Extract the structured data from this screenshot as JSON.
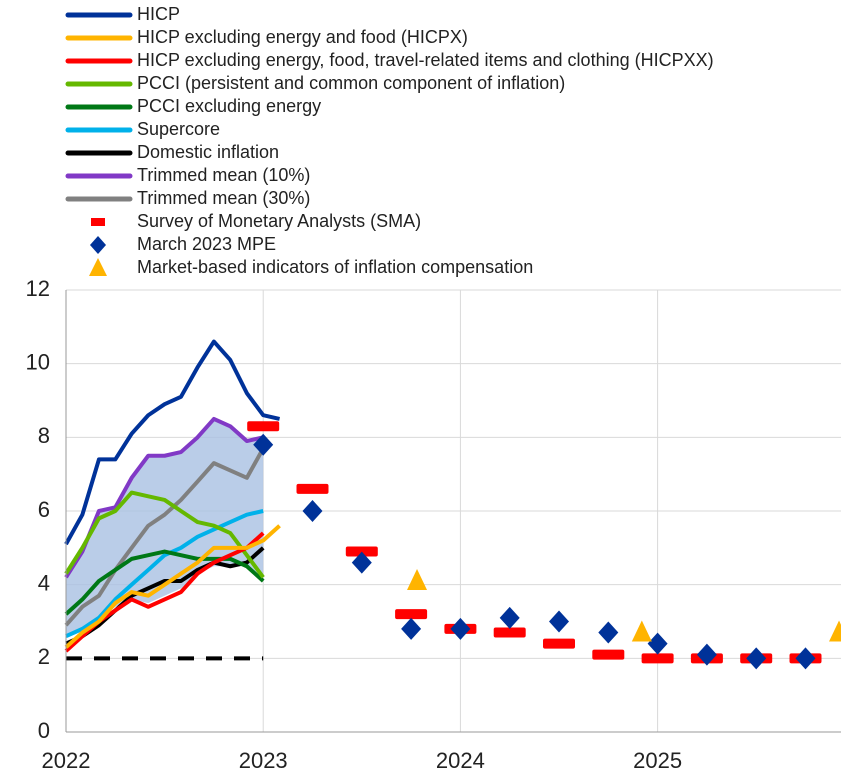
{
  "chart_data": {
    "type": "line",
    "xlim": [
      2022,
      2025.93
    ],
    "xticks": [
      2022,
      2023,
      2024,
      2025
    ],
    "ylim": [
      0,
      12
    ],
    "yticks": [
      0,
      2,
      4,
      6,
      8,
      10,
      12
    ],
    "grid": true,
    "band": {
      "color": "#a9c1e2",
      "x": [
        2022,
        2022.083,
        2022.167,
        2022.25,
        2022.333,
        2022.417,
        2022.5,
        2022.583,
        2022.667,
        2022.75,
        2022.833,
        2022.917,
        2023
      ],
      "lower": [
        2.6,
        2.8,
        3.0,
        3.4,
        3.6,
        3.5,
        3.7,
        3.9,
        4.3,
        4.5,
        4.5,
        4.5,
        4.2
      ],
      "upper": [
        4.2,
        4.9,
        6.0,
        6.1,
        6.9,
        7.5,
        7.5,
        7.6,
        8.0,
        8.5,
        8.3,
        7.9,
        8.0
      ]
    },
    "target_line": {
      "color": "#000000",
      "x": [
        2022,
        2023
      ],
      "values": [
        2,
        2
      ]
    },
    "series": [
      {
        "name": "HICP",
        "color": "#003299",
        "marker": "line",
        "x": [
          2022,
          2022.083,
          2022.167,
          2022.25,
          2022.333,
          2022.417,
          2022.5,
          2022.583,
          2022.667,
          2022.75,
          2022.833,
          2022.917,
          2023,
          2023.083
        ],
        "values": [
          5.1,
          5.9,
          7.4,
          7.4,
          8.1,
          8.6,
          8.9,
          9.1,
          9.9,
          10.6,
          10.1,
          9.2,
          8.6,
          8.5
        ]
      },
      {
        "name": "HICP excluding energy and food (HICPX)",
        "color": "#ffb400",
        "marker": "line",
        "x": [
          2022,
          2022.083,
          2022.167,
          2022.25,
          2022.333,
          2022.417,
          2022.5,
          2022.583,
          2022.667,
          2022.75,
          2022.833,
          2022.917,
          2023,
          2023.083
        ],
        "values": [
          2.3,
          2.7,
          3.0,
          3.5,
          3.8,
          3.7,
          4.0,
          4.3,
          4.6,
          5.0,
          5.0,
          5.0,
          5.2,
          5.6
        ]
      },
      {
        "name": "HICP excluding energy, food, travel-related items and clothing (HICPXX)",
        "color": "#ff0000",
        "marker": "line",
        "x": [
          2022,
          2022.083,
          2022.167,
          2022.25,
          2022.333,
          2022.417,
          2022.5,
          2022.583,
          2022.667,
          2022.75,
          2022.833,
          2022.917,
          2023
        ],
        "values": [
          2.2,
          2.6,
          3.0,
          3.3,
          3.6,
          3.4,
          3.6,
          3.8,
          4.3,
          4.6,
          4.8,
          5.0,
          5.4
        ]
      },
      {
        "name": "PCCI (persistent and common component of inflation)",
        "color": "#65b800",
        "marker": "line",
        "x": [
          2022,
          2022.083,
          2022.167,
          2022.25,
          2022.333,
          2022.417,
          2022.5,
          2022.583,
          2022.667,
          2022.75,
          2022.833,
          2022.917,
          2023
        ],
        "values": [
          4.3,
          5.0,
          5.8,
          6.0,
          6.5,
          6.4,
          6.3,
          6.0,
          5.7,
          5.6,
          5.4,
          4.8,
          4.2
        ]
      },
      {
        "name": "PCCI excluding energy",
        "color": "#007816",
        "marker": "line",
        "x": [
          2022,
          2022.083,
          2022.167,
          2022.25,
          2022.333,
          2022.417,
          2022.5,
          2022.583,
          2022.667,
          2022.75,
          2022.833,
          2022.917,
          2023
        ],
        "values": [
          3.2,
          3.6,
          4.1,
          4.4,
          4.7,
          4.8,
          4.9,
          4.8,
          4.7,
          4.7,
          4.7,
          4.5,
          4.1
        ]
      },
      {
        "name": "Supercore",
        "color": "#00b1ea",
        "marker": "line",
        "x": [
          2022,
          2022.083,
          2022.167,
          2022.25,
          2022.333,
          2022.417,
          2022.5,
          2022.583,
          2022.667,
          2022.75,
          2022.833,
          2022.917,
          2023
        ],
        "values": [
          2.6,
          2.8,
          3.1,
          3.6,
          4.0,
          4.4,
          4.8,
          5.0,
          5.3,
          5.5,
          5.7,
          5.9,
          6.0
        ]
      },
      {
        "name": "Domestic inflation",
        "color": "#000000",
        "marker": "line",
        "x": [
          2022,
          2022.083,
          2022.167,
          2022.25,
          2022.333,
          2022.417,
          2022.5,
          2022.583,
          2022.667,
          2022.75,
          2022.833,
          2022.917,
          2023
        ],
        "values": [
          2.4,
          2.6,
          2.9,
          3.3,
          3.7,
          3.9,
          4.1,
          4.1,
          4.4,
          4.6,
          4.5,
          4.6,
          5.0
        ]
      },
      {
        "name": "Trimmed mean (10%)",
        "color": "#8139c6",
        "marker": "line",
        "x": [
          2022,
          2022.083,
          2022.167,
          2022.25,
          2022.333,
          2022.417,
          2022.5,
          2022.583,
          2022.667,
          2022.75,
          2022.833,
          2022.917,
          2023
        ],
        "values": [
          4.2,
          4.9,
          6.0,
          6.1,
          6.9,
          7.5,
          7.5,
          7.6,
          8.0,
          8.5,
          8.3,
          7.9,
          8.0
        ]
      },
      {
        "name": "Trimmed mean (30%)",
        "color": "#808080",
        "marker": "line",
        "x": [
          2022,
          2022.083,
          2022.167,
          2022.25,
          2022.333,
          2022.417,
          2022.5,
          2022.583,
          2022.667,
          2022.75,
          2022.833,
          2022.917,
          2023
        ],
        "values": [
          2.9,
          3.4,
          3.7,
          4.4,
          5.0,
          5.6,
          5.9,
          6.3,
          6.8,
          7.3,
          7.1,
          6.9,
          7.7
        ]
      },
      {
        "name": "Survey of Monetary Analysts (SMA)",
        "color": "#ff0000",
        "marker": "dash",
        "x": [
          2023,
          2023.25,
          2023.5,
          2023.75,
          2024,
          2024.25,
          2024.5,
          2024.75,
          2025,
          2025.25,
          2025.5,
          2025.75
        ],
        "values": [
          8.3,
          6.6,
          4.9,
          3.2,
          2.8,
          2.7,
          2.4,
          2.1,
          2.0,
          2.0,
          2.0,
          2.0
        ]
      },
      {
        "name": "March 2023 MPE",
        "color": "#003299",
        "marker": "diamond",
        "x": [
          2023,
          2023.25,
          2023.5,
          2023.75,
          2024,
          2024.25,
          2024.5,
          2024.75,
          2025,
          2025.25,
          2025.5,
          2025.75
        ],
        "values": [
          7.8,
          6.0,
          4.6,
          2.8,
          2.8,
          3.1,
          3.0,
          2.7,
          2.4,
          2.1,
          2.0,
          2.0
        ]
      },
      {
        "name": "Market-based indicators of inflation compensation",
        "color": "#ffb400",
        "marker": "triangle",
        "x": [
          2023.78,
          2024.92,
          2025.92
        ],
        "values": [
          4.1,
          2.7,
          2.7
        ]
      }
    ]
  }
}
